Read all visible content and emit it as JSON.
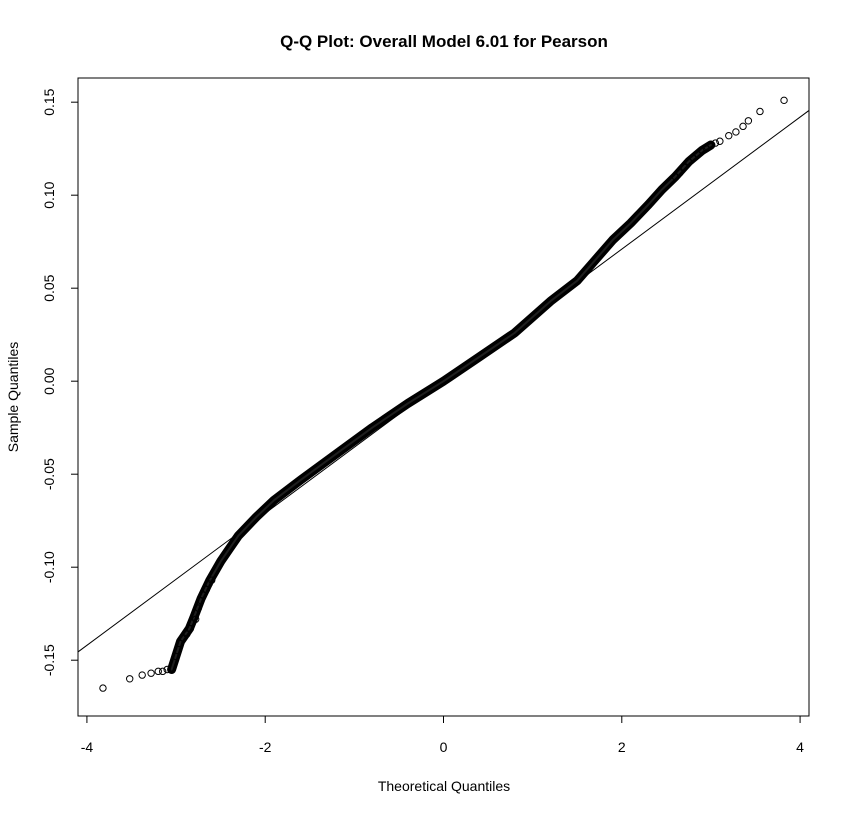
{
  "chart_data": {
    "type": "scatter",
    "subtype": "qq-plot",
    "title": "Q-Q Plot: Overall Model 6.01 for Pearson",
    "xlabel": "Theoretical Quantiles",
    "ylabel": "Sample Quantiles",
    "xlim": [
      -4.1,
      4.1
    ],
    "ylim": [
      -0.18,
      0.163
    ],
    "x_ticks": [
      -4,
      -2,
      0,
      2,
      4
    ],
    "x_tick_labels": [
      "-4",
      "-2",
      "0",
      "2",
      "4"
    ],
    "y_ticks": [
      -0.15,
      -0.1,
      -0.05,
      0.0,
      0.05,
      0.1,
      0.15
    ],
    "y_tick_labels": [
      "-0.15",
      "-0.10",
      "-0.05",
      "0.00",
      "0.05",
      "0.10",
      "0.15"
    ],
    "reference_line": {
      "intercept": 0.0,
      "slope": 0.0355
    },
    "quantile_curve": [
      [
        -3.05,
        -0.155
      ],
      [
        -2.95,
        -0.14
      ],
      [
        -2.85,
        -0.133
      ],
      [
        -2.8,
        -0.127
      ],
      [
        -2.72,
        -0.117
      ],
      [
        -2.62,
        -0.107
      ],
      [
        -2.5,
        -0.097
      ],
      [
        -2.4,
        -0.09
      ],
      [
        -2.3,
        -0.083
      ],
      [
        -2.1,
        -0.073
      ],
      [
        -1.9,
        -0.064
      ],
      [
        -1.6,
        -0.053
      ],
      [
        -1.2,
        -0.039
      ],
      [
        -0.8,
        -0.025
      ],
      [
        -0.4,
        -0.012
      ],
      [
        0.0,
        0.0
      ],
      [
        0.4,
        0.013
      ],
      [
        0.8,
        0.026
      ],
      [
        1.2,
        0.043
      ],
      [
        1.5,
        0.054
      ],
      [
        1.7,
        0.065
      ],
      [
        1.9,
        0.076
      ],
      [
        2.1,
        0.085
      ],
      [
        2.3,
        0.095
      ],
      [
        2.45,
        0.103
      ],
      [
        2.6,
        0.11
      ],
      [
        2.75,
        0.118
      ],
      [
        2.9,
        0.124
      ],
      [
        3.0,
        0.127
      ]
    ],
    "points": [
      [
        -3.82,
        -0.165
      ],
      [
        -3.52,
        -0.16
      ],
      [
        -3.38,
        -0.158
      ],
      [
        -3.28,
        -0.157
      ],
      [
        -3.2,
        -0.156
      ],
      [
        -3.15,
        -0.156
      ],
      [
        -3.1,
        -0.155
      ],
      [
        -3.0,
        -0.148
      ],
      [
        -2.96,
        -0.141
      ],
      [
        -2.92,
        -0.138
      ],
      [
        -2.88,
        -0.136
      ],
      [
        -2.84,
        -0.133
      ],
      [
        -2.82,
        -0.13
      ],
      [
        -2.78,
        -0.128
      ],
      [
        -2.75,
        -0.122
      ],
      [
        -2.72,
        -0.118
      ],
      [
        -2.7,
        -0.115
      ],
      [
        -2.66,
        -0.112
      ],
      [
        -2.63,
        -0.109
      ],
      [
        -2.6,
        -0.107
      ],
      [
        2.6,
        0.11
      ],
      [
        2.65,
        0.112
      ],
      [
        2.7,
        0.115
      ],
      [
        2.75,
        0.118
      ],
      [
        2.8,
        0.12
      ],
      [
        2.85,
        0.122
      ],
      [
        2.9,
        0.124
      ],
      [
        2.95,
        0.125
      ],
      [
        3.0,
        0.127
      ],
      [
        3.05,
        0.128
      ],
      [
        3.1,
        0.129
      ],
      [
        3.2,
        0.132
      ],
      [
        3.28,
        0.134
      ],
      [
        3.36,
        0.137
      ],
      [
        3.42,
        0.14
      ],
      [
        3.55,
        0.145
      ],
      [
        3.82,
        0.151
      ]
    ]
  }
}
